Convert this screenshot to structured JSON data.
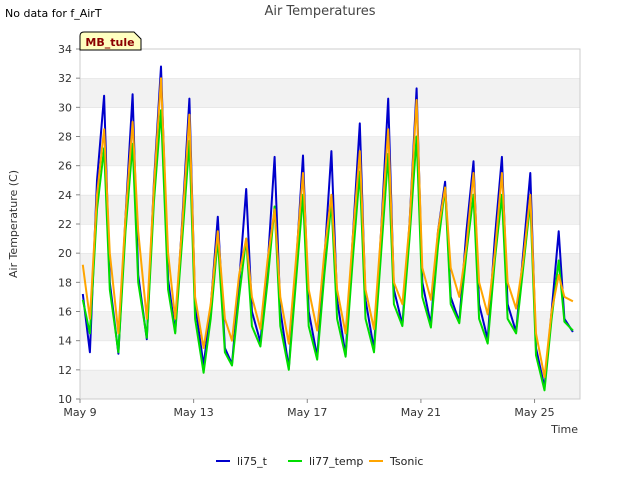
{
  "chart_data": {
    "type": "line",
    "title": "Air Temperatures",
    "note": "No data for f_AirT",
    "site_tag": "MB_tule",
    "xlabel": "Time",
    "ylabel": "Air Temperature (C)",
    "ylim": [
      10,
      34
    ],
    "xlim": [
      9,
      26.6
    ],
    "y_ticks": [
      10,
      12,
      14,
      16,
      18,
      20,
      22,
      24,
      26,
      28,
      30,
      32,
      34
    ],
    "x_ticks": [
      {
        "value": 9,
        "label": "May 9"
      },
      {
        "value": 13,
        "label": "May 13"
      },
      {
        "value": 17,
        "label": "May 17"
      },
      {
        "value": 21,
        "label": "May 21"
      },
      {
        "value": 25,
        "label": "May 25"
      }
    ],
    "grid": "horizontal bands",
    "legend_position": "bottom",
    "series": [
      {
        "name": "li75_t",
        "color": "#0000cc",
        "x": [
          9.1,
          9.35,
          9.6,
          9.85,
          10.05,
          10.35,
          10.6,
          10.85,
          11.05,
          11.35,
          11.6,
          11.85,
          12.1,
          12.35,
          12.6,
          12.85,
          13.05,
          13.35,
          13.6,
          13.85,
          14.1,
          14.35,
          14.6,
          14.85,
          15.05,
          15.35,
          15.6,
          15.85,
          16.05,
          16.35,
          16.6,
          16.85,
          17.05,
          17.35,
          17.6,
          17.85,
          18.05,
          18.35,
          18.6,
          18.85,
          19.05,
          19.35,
          19.6,
          19.85,
          20.05,
          20.35,
          20.6,
          20.85,
          21.05,
          21.35,
          21.6,
          21.85,
          22.05,
          22.35,
          22.6,
          22.85,
          23.05,
          23.35,
          23.6,
          23.85,
          24.05,
          24.35,
          24.6,
          24.85,
          25.05,
          25.35,
          25.6,
          25.85,
          26.05,
          26.35
        ],
        "y": [
          17.2,
          13.2,
          25.0,
          30.8,
          18.0,
          13.1,
          22.5,
          30.9,
          18.5,
          14.1,
          24.8,
          32.8,
          18.2,
          14.6,
          22.3,
          30.6,
          16.5,
          12.3,
          16.3,
          22.5,
          13.5,
          12.4,
          18.0,
          24.4,
          16.0,
          13.9,
          19.0,
          26.6,
          16.1,
          12.1,
          19.0,
          26.7,
          16.0,
          12.9,
          19.5,
          27.0,
          16.8,
          13.0,
          21.0,
          28.9,
          16.8,
          13.4,
          21.5,
          30.6,
          17.5,
          15.1,
          22.0,
          31.3,
          18.0,
          15.1,
          21.5,
          24.9,
          17.0,
          15.3,
          21.5,
          26.3,
          16.5,
          14.1,
          21.0,
          26.6,
          16.5,
          14.6,
          20.0,
          25.5,
          13.5,
          10.8,
          16.0,
          21.5,
          15.5,
          14.6
        ]
      },
      {
        "name": "li77_temp",
        "color": "#00dd00",
        "x": [
          9.1,
          9.35,
          9.6,
          9.85,
          10.05,
          10.35,
          10.6,
          10.85,
          11.05,
          11.35,
          11.6,
          11.85,
          12.1,
          12.35,
          12.6,
          12.85,
          13.05,
          13.35,
          13.6,
          13.85,
          14.1,
          14.35,
          14.6,
          14.85,
          15.05,
          15.35,
          15.6,
          15.85,
          16.05,
          16.35,
          16.6,
          16.85,
          17.05,
          17.35,
          17.6,
          17.85,
          18.05,
          18.35,
          18.6,
          18.85,
          19.05,
          19.35,
          19.6,
          19.85,
          20.05,
          20.35,
          20.6,
          20.85,
          21.05,
          21.35,
          21.6,
          21.85,
          22.05,
          22.35,
          22.6,
          22.85,
          23.05,
          23.35,
          23.6,
          23.85,
          24.05,
          24.35,
          24.6,
          24.85,
          25.05,
          25.35,
          25.6,
          25.85,
          26.05,
          26.35
        ],
        "y": [
          16.8,
          14.5,
          23.0,
          27.2,
          17.5,
          13.2,
          21.5,
          27.5,
          18.0,
          14.2,
          23.5,
          29.8,
          17.5,
          14.5,
          21.0,
          27.7,
          15.5,
          11.8,
          15.5,
          21.0,
          13.2,
          12.3,
          17.0,
          21.0,
          15.0,
          13.6,
          18.0,
          23.2,
          15.0,
          12.0,
          18.0,
          24.0,
          15.0,
          12.7,
          18.5,
          23.5,
          15.5,
          12.9,
          19.5,
          25.6,
          15.5,
          13.2,
          20.0,
          26.8,
          16.5,
          15.0,
          21.0,
          28.0,
          17.0,
          14.9,
          20.5,
          24.5,
          16.5,
          15.2,
          20.0,
          24.0,
          15.5,
          13.8,
          19.5,
          24.0,
          15.5,
          14.5,
          19.0,
          23.5,
          13.0,
          10.6,
          15.5,
          19.5,
          15.3,
          14.7
        ]
      },
      {
        "name": "Tsonic",
        "color": "#ffa500",
        "x": [
          9.1,
          9.35,
          9.6,
          9.85,
          10.05,
          10.35,
          10.6,
          10.85,
          11.05,
          11.35,
          11.6,
          11.85,
          12.1,
          12.35,
          12.6,
          12.85,
          13.05,
          13.35,
          13.6,
          13.85,
          14.1,
          14.35,
          14.6,
          14.85,
          15.05,
          15.35,
          15.6,
          15.85,
          16.05,
          16.35,
          16.6,
          16.85,
          17.05,
          17.35,
          17.6,
          17.85,
          18.05,
          18.35,
          18.6,
          18.85,
          19.05,
          19.35,
          19.6,
          19.85,
          20.05,
          20.35,
          20.6,
          20.85,
          21.05,
          21.35,
          21.6,
          21.85,
          22.05,
          22.35,
          22.6,
          22.85,
          23.05,
          23.35,
          23.6,
          23.85,
          24.05,
          24.35,
          24.6,
          24.85,
          25.05,
          25.35,
          25.6,
          25.85,
          26.05,
          26.35
        ],
        "y": [
          19.2,
          15.5,
          24.0,
          28.5,
          20.0,
          14.5,
          22.5,
          29.0,
          21.5,
          15.5,
          24.5,
          32.0,
          20.0,
          15.5,
          22.0,
          29.5,
          17.0,
          13.5,
          16.5,
          21.5,
          15.5,
          14.0,
          18.5,
          21.0,
          17.0,
          14.8,
          19.5,
          23.0,
          17.0,
          13.8,
          19.5,
          25.5,
          17.5,
          14.7,
          20.0,
          24.0,
          17.5,
          14.5,
          21.0,
          27.0,
          17.5,
          14.8,
          21.5,
          28.5,
          18.0,
          16.5,
          22.0,
          30.5,
          19.0,
          16.8,
          21.5,
          24.5,
          19.0,
          17.0,
          20.5,
          25.5,
          18.0,
          15.8,
          20.0,
          25.5,
          18.0,
          16.2,
          19.5,
          24.0,
          14.5,
          11.5,
          16.0,
          18.5,
          17.0,
          16.7
        ]
      }
    ]
  }
}
